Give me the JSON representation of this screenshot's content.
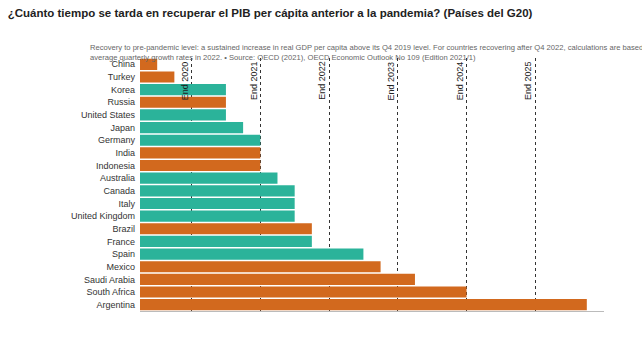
{
  "chart_data": {
    "type": "bar",
    "title": "¿Cuánto tiempo se tarda en recuperar el PIB per cápita anterior a la pandemia? (Países del G20)",
    "orientation": "horizontal",
    "categories": [
      "China",
      "Turkey",
      "Korea",
      "Russia",
      "United States",
      "Japan",
      "Germany",
      "India",
      "Indonesia",
      "Australia",
      "Canada",
      "Italy",
      "United Kingdom",
      "Brazil",
      "France",
      "Spain",
      "Mexico",
      "Saudi Arabia",
      "South Africa",
      "Argentina"
    ],
    "values": [
      2,
      3,
      6,
      6,
      6,
      7,
      8,
      8,
      8,
      9,
      10,
      10,
      10,
      11,
      11,
      14,
      15,
      17,
      20,
      27
    ],
    "colors": [
      "#d2691e",
      "#d2691e",
      "#2bb39a",
      "#d2691e",
      "#2bb39a",
      "#2bb39a",
      "#2bb39a",
      "#d2691e",
      "#d2691e",
      "#2bb39a",
      "#2bb39a",
      "#2bb39a",
      "#2bb39a",
      "#d2691e",
      "#2bb39a",
      "#2bb39a",
      "#d2691e",
      "#d2691e",
      "#d2691e",
      "#d2691e"
    ],
    "xlim": [
      1,
      28
    ],
    "xticks": [
      {
        "value": 4,
        "label": "End 2020"
      },
      {
        "value": 8,
        "label": "End 2021"
      },
      {
        "value": 12,
        "label": "End 2022"
      },
      {
        "value": 16,
        "label": "End 2023"
      },
      {
        "value": 20,
        "label": "End 2024"
      },
      {
        "value": 24,
        "label": "End 2025"
      }
    ],
    "grid": true,
    "note": [
      "Recovery to pre-pandemic level: a sustained increase in real GDP per capita above its Q4 2019 level. For countries recovering after Q4 2022, calculations are based on",
      "average quarterly growth rates in 2022. • Source: OECD (2021), OECD Economic Outlook No 109 (Edition 2021/1)"
    ]
  }
}
